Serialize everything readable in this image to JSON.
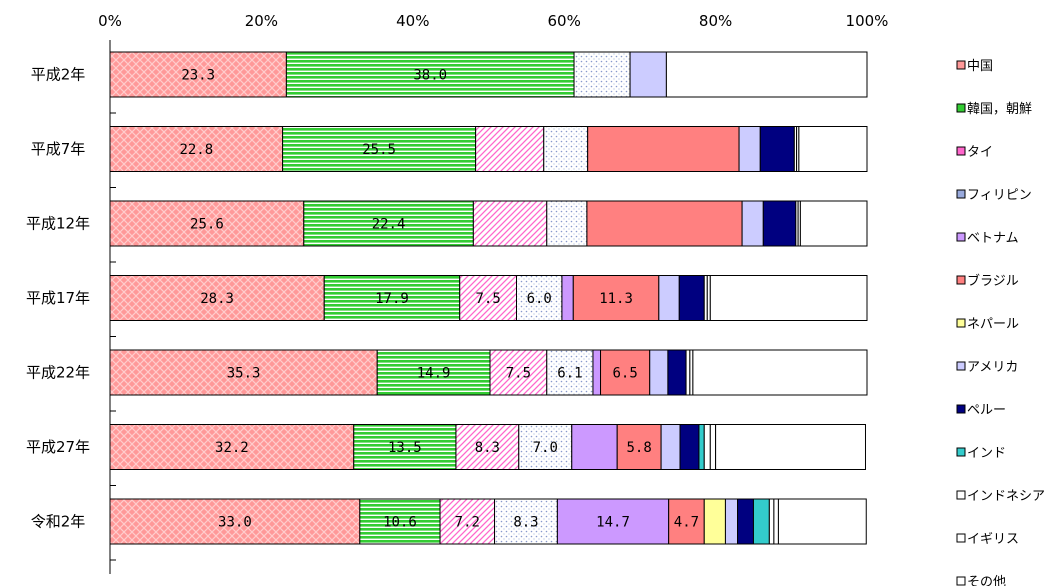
{
  "chart_data": {
    "type": "bar",
    "orientation": "horizontal",
    "stacked": true,
    "x_ticks": [
      "0%",
      "20%",
      "40%",
      "60%",
      "80%",
      "100%"
    ],
    "xlim": [
      0,
      100
    ],
    "categories": [
      "平成2年",
      "平成7年",
      "平成12年",
      "平成17年",
      "平成22年",
      "平成27年",
      "令和2年"
    ],
    "series": [
      {
        "name": "中国",
        "color": "#ff9999",
        "pattern": "check",
        "values": [
          23.3,
          22.8,
          25.6,
          28.3,
          35.3,
          32.2,
          33.0
        ],
        "labels": [
          "23.3",
          "22.8",
          "25.6",
          "28.3",
          "35.3",
          "32.2",
          "33.0"
        ]
      },
      {
        "name": "韓国，朝鮮",
        "color": "#33cc33",
        "pattern": "hstripe",
        "values": [
          38.0,
          25.5,
          22.4,
          17.9,
          14.9,
          13.5,
          10.6
        ],
        "labels": [
          "38.0",
          "25.5",
          "22.4",
          "17.9",
          "14.9",
          "13.5",
          "10.6"
        ]
      },
      {
        "name": "タイ",
        "color": "#ff66cc",
        "pattern": "diag",
        "values": [
          0,
          9.0,
          9.7,
          7.5,
          7.5,
          8.3,
          7.2
        ],
        "labels": [
          "",
          "",
          "",
          "7.5",
          "7.5",
          "8.3",
          "7.2"
        ]
      },
      {
        "name": "フィリピン",
        "color": "#99aadd",
        "pattern": "dots",
        "values": [
          7.4,
          5.8,
          5.3,
          6.0,
          6.1,
          7.0,
          8.3
        ],
        "labels": [
          "",
          "",
          "",
          "6.0",
          "6.1",
          "7.0",
          "8.3"
        ]
      },
      {
        "name": "ベトナム",
        "color": "#cc99ff",
        "pattern": "solid",
        "values": [
          0,
          0,
          0,
          1.5,
          1.0,
          6.0,
          14.7
        ],
        "labels": [
          "",
          "",
          "",
          "",
          "",
          "",
          "14.7"
        ]
      },
      {
        "name": "ブラジル",
        "color": "#ff8080",
        "pattern": "solid",
        "values": [
          0,
          20.0,
          20.5,
          11.3,
          6.5,
          5.8,
          4.7
        ],
        "labels": [
          "",
          "",
          "",
          "11.3",
          "6.5",
          "5.8",
          "4.7"
        ]
      },
      {
        "name": "ネパール",
        "color": "#ffff99",
        "pattern": "solid",
        "values": [
          0,
          0,
          0,
          0,
          0,
          0,
          2.8
        ],
        "labels": [
          "",
          "",
          "",
          "",
          "",
          "",
          ""
        ]
      },
      {
        "name": "アメリカ",
        "color": "#ccccff",
        "pattern": "solid",
        "values": [
          4.8,
          2.8,
          2.8,
          2.7,
          2.4,
          2.5,
          1.6
        ],
        "labels": [
          "",
          "",
          "",
          "",
          "",
          "",
          ""
        ]
      },
      {
        "name": "ペルー",
        "color": "#000080",
        "pattern": "solid",
        "values": [
          0,
          4.5,
          4.3,
          3.3,
          2.4,
          2.5,
          2.1
        ],
        "labels": [
          "",
          "",
          "",
          "",
          "",
          "",
          ""
        ]
      },
      {
        "name": "インド",
        "color": "#33cccc",
        "pattern": "solid",
        "values": [
          0,
          0,
          0,
          0,
          0,
          0.7,
          2.1
        ],
        "labels": [
          "",
          "",
          "",
          "",
          "",
          "",
          ""
        ]
      },
      {
        "name": "インドネシア",
        "color": "#ffffff",
        "pattern": "solid",
        "values": [
          0,
          0.3,
          0.3,
          0.4,
          0.5,
          0.8,
          0.6
        ],
        "labels": [
          "",
          "",
          "",
          "",
          "",
          "",
          ""
        ]
      },
      {
        "name": "イギリス",
        "color": "#ffffff",
        "pattern": "solid",
        "values": [
          0,
          0.3,
          0.3,
          0.4,
          0.4,
          0.7,
          0.6
        ],
        "labels": [
          "",
          "",
          "",
          "",
          "",
          "",
          ""
        ]
      },
      {
        "name": "その他",
        "color": "#ffffff",
        "pattern": "solid",
        "values": [
          26.5,
          9.0,
          8.8,
          20.7,
          23.0,
          19.8,
          11.6
        ],
        "labels": [
          "",
          "",
          "",
          "",
          "",
          "",
          ""
        ]
      }
    ],
    "legend_position": "right"
  }
}
